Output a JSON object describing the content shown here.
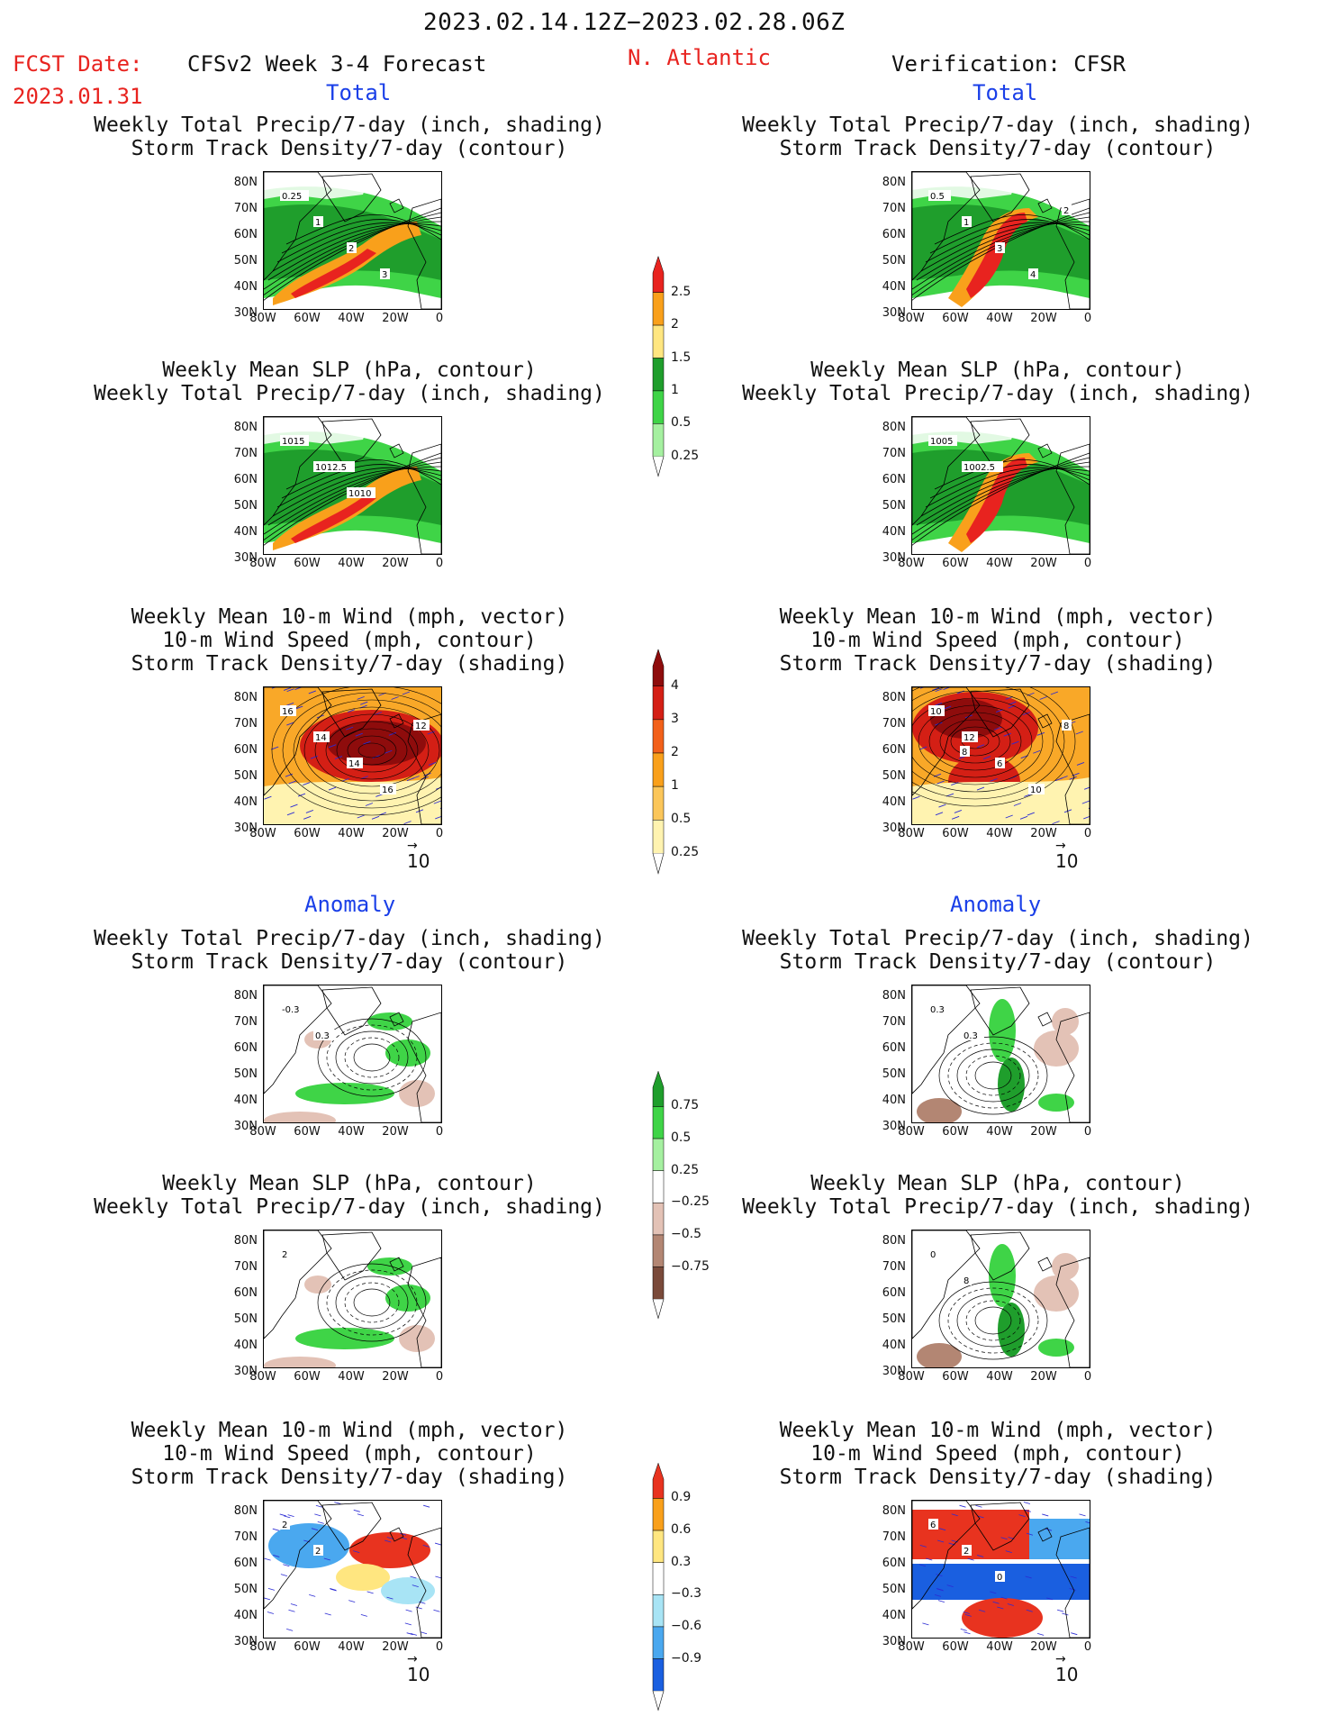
{
  "header": {
    "date_range": "2023.02.14.12Z−2023.02.28.06Z",
    "fcst_label": "FCST Date:",
    "fcst_date": "2023.01.31",
    "model": "CFSv2 Week 3-4 Forecast",
    "region": "N. Atlantic",
    "verification": "Verification: CFSR"
  },
  "sections": {
    "total": "Total",
    "anomaly": "Anomaly"
  },
  "panel_titles": {
    "precip_storm": [
      "Weekly Total Precip/7-day (inch, shading)",
      "Storm Track Density/7-day (contour)"
    ],
    "slp_precip": [
      "Weekly Mean SLP (hPa, contour)",
      "Weekly Total Precip/7-day (inch, shading)"
    ],
    "wind_storm": [
      "Weekly Mean 10-m Wind (mph, vector)",
      "10-m Wind Speed (mph, contour)",
      "Storm Track Density/7-day (shading)"
    ]
  },
  "axes": {
    "lat_ticks": [
      "80N",
      "70N",
      "60N",
      "50N",
      "40N",
      "30N"
    ],
    "lon_ticks": [
      "80W",
      "60W",
      "40W",
      "20W",
      "0"
    ]
  },
  "vector_reference": "10",
  "colorbars": {
    "precip_total": {
      "labels": [
        "2.5",
        "2",
        "1.5",
        "1",
        "0.5",
        "0.25"
      ],
      "colors": [
        "#e8231f",
        "#f9a01b",
        "#ffe680",
        "#1f9e2c",
        "#3fd447",
        "#a5f0a0"
      ]
    },
    "storm_total": {
      "labels": [
        "4",
        "3",
        "2",
        "1",
        "0.5",
        "0.25"
      ],
      "colors": [
        "#8e0c0c",
        "#d41f15",
        "#f2601a",
        "#f9a01b",
        "#fbc65a",
        "#fff3b0"
      ]
    },
    "precip_anom": {
      "labels": [
        "0.75",
        "0.5",
        "0.25",
        "−0.25",
        "−0.5",
        "−0.75"
      ],
      "colors": [
        "#1f9e2c",
        "#3fd447",
        "#a5f0a0",
        "#ffffff",
        "#e3c2b6",
        "#b38673",
        "#7a4a3a"
      ]
    },
    "storm_anom": {
      "labels": [
        "0.9",
        "0.6",
        "0.3",
        "−0.3",
        "−0.6",
        "−0.9"
      ],
      "colors": [
        "#e8331f",
        "#f9a01b",
        "#ffe680",
        "#ffffff",
        "#a8e4f5",
        "#4aa8ef",
        "#1a5fe0"
      ]
    }
  },
  "contour_labels": {
    "p1L": [
      "0.25",
      "1",
      "2",
      "3"
    ],
    "p1R": [
      "0.5",
      "1",
      "3",
      "4",
      "2"
    ],
    "p2L": [
      "1015",
      "1012.5",
      "1010"
    ],
    "p2R": [
      "1005",
      "1002.5"
    ],
    "p3L": [
      "16",
      "14",
      "14",
      "16",
      "12"
    ],
    "p3R": [
      "10",
      "12",
      "6",
      "10",
      "8",
      "8"
    ],
    "p4L": [
      "-0.3",
      "0.3"
    ],
    "p4R": [
      "0.3",
      "0.3"
    ],
    "p5L": [
      "2"
    ],
    "p5R": [
      "0",
      "8"
    ],
    "p6L": [
      "2",
      "2"
    ],
    "p6R": [
      "6",
      "2",
      "0"
    ]
  }
}
